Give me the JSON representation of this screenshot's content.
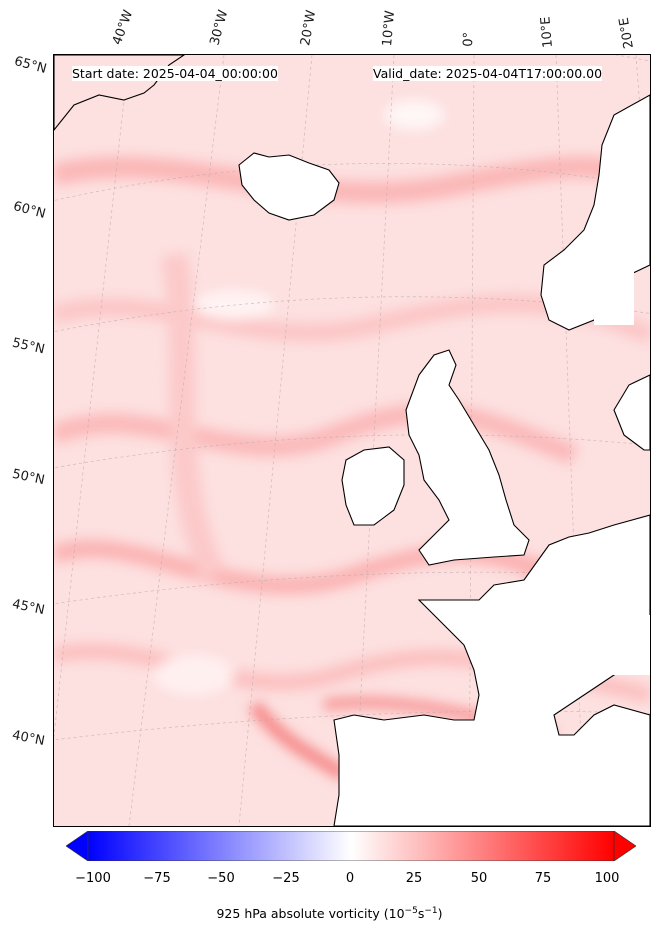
{
  "header": {
    "start_date": "Start date: 2025-04-04_00:00:00",
    "valid_date": "Valid_date: 2025-04-04T17:00:00.00"
  },
  "axes": {
    "longitude_labels": [
      "40°W",
      "30°W",
      "20°W",
      "10°W",
      "0°",
      "10°E",
      "20°E"
    ],
    "latitude_labels": [
      "65°N",
      "60°N",
      "55°N",
      "50°N",
      "45°N",
      "40°N"
    ]
  },
  "colorbar": {
    "ticks": [
      "−100",
      "−75",
      "−50",
      "−25",
      "0",
      "25",
      "50",
      "75",
      "100"
    ],
    "label_prefix": "925 hPa absolute vorticity (10",
    "label_exp1": "−5",
    "label_mid": "s",
    "label_exp2": "−1",
    "label_suffix": ")",
    "range": [
      -100,
      100
    ],
    "min_color": "#0000ff",
    "mid_color": "#ffffff",
    "max_color": "#ff0000"
  },
  "map": {
    "background_color": "#fde0e0",
    "land_fill": "#ffffff",
    "coastline_color": "#000000"
  }
}
